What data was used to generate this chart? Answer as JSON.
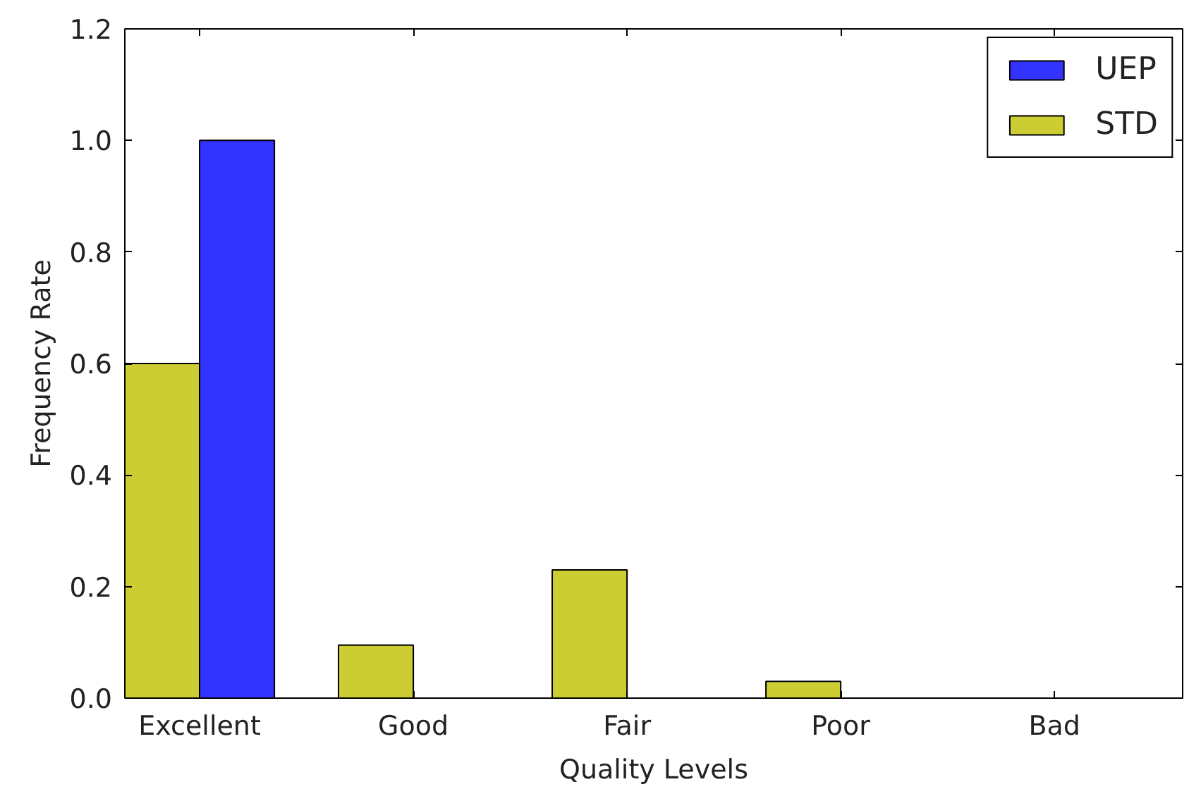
{
  "chart_data": {
    "type": "bar",
    "xlabel": "Quality Levels",
    "ylabel": "Frequency Rate",
    "categories": [
      "Excellent",
      "Good",
      "Fair",
      "Poor",
      "Bad"
    ],
    "series": [
      {
        "name": "STD",
        "color": "#cccc33",
        "values": [
          0.6,
          0.095,
          0.23,
          0.03,
          0
        ]
      },
      {
        "name": "UEP",
        "color": "#3333ff",
        "values": [
          1.0,
          0,
          0,
          0,
          0
        ]
      }
    ],
    "ylim": [
      0,
      1.2
    ],
    "yticks": [
      {
        "value": 0,
        "label": "0.0"
      },
      0.2,
      0.4,
      0.6,
      0.8,
      {
        "value": 1,
        "label": "1.0"
      },
      1.2
    ],
    "legend": "top right"
  }
}
